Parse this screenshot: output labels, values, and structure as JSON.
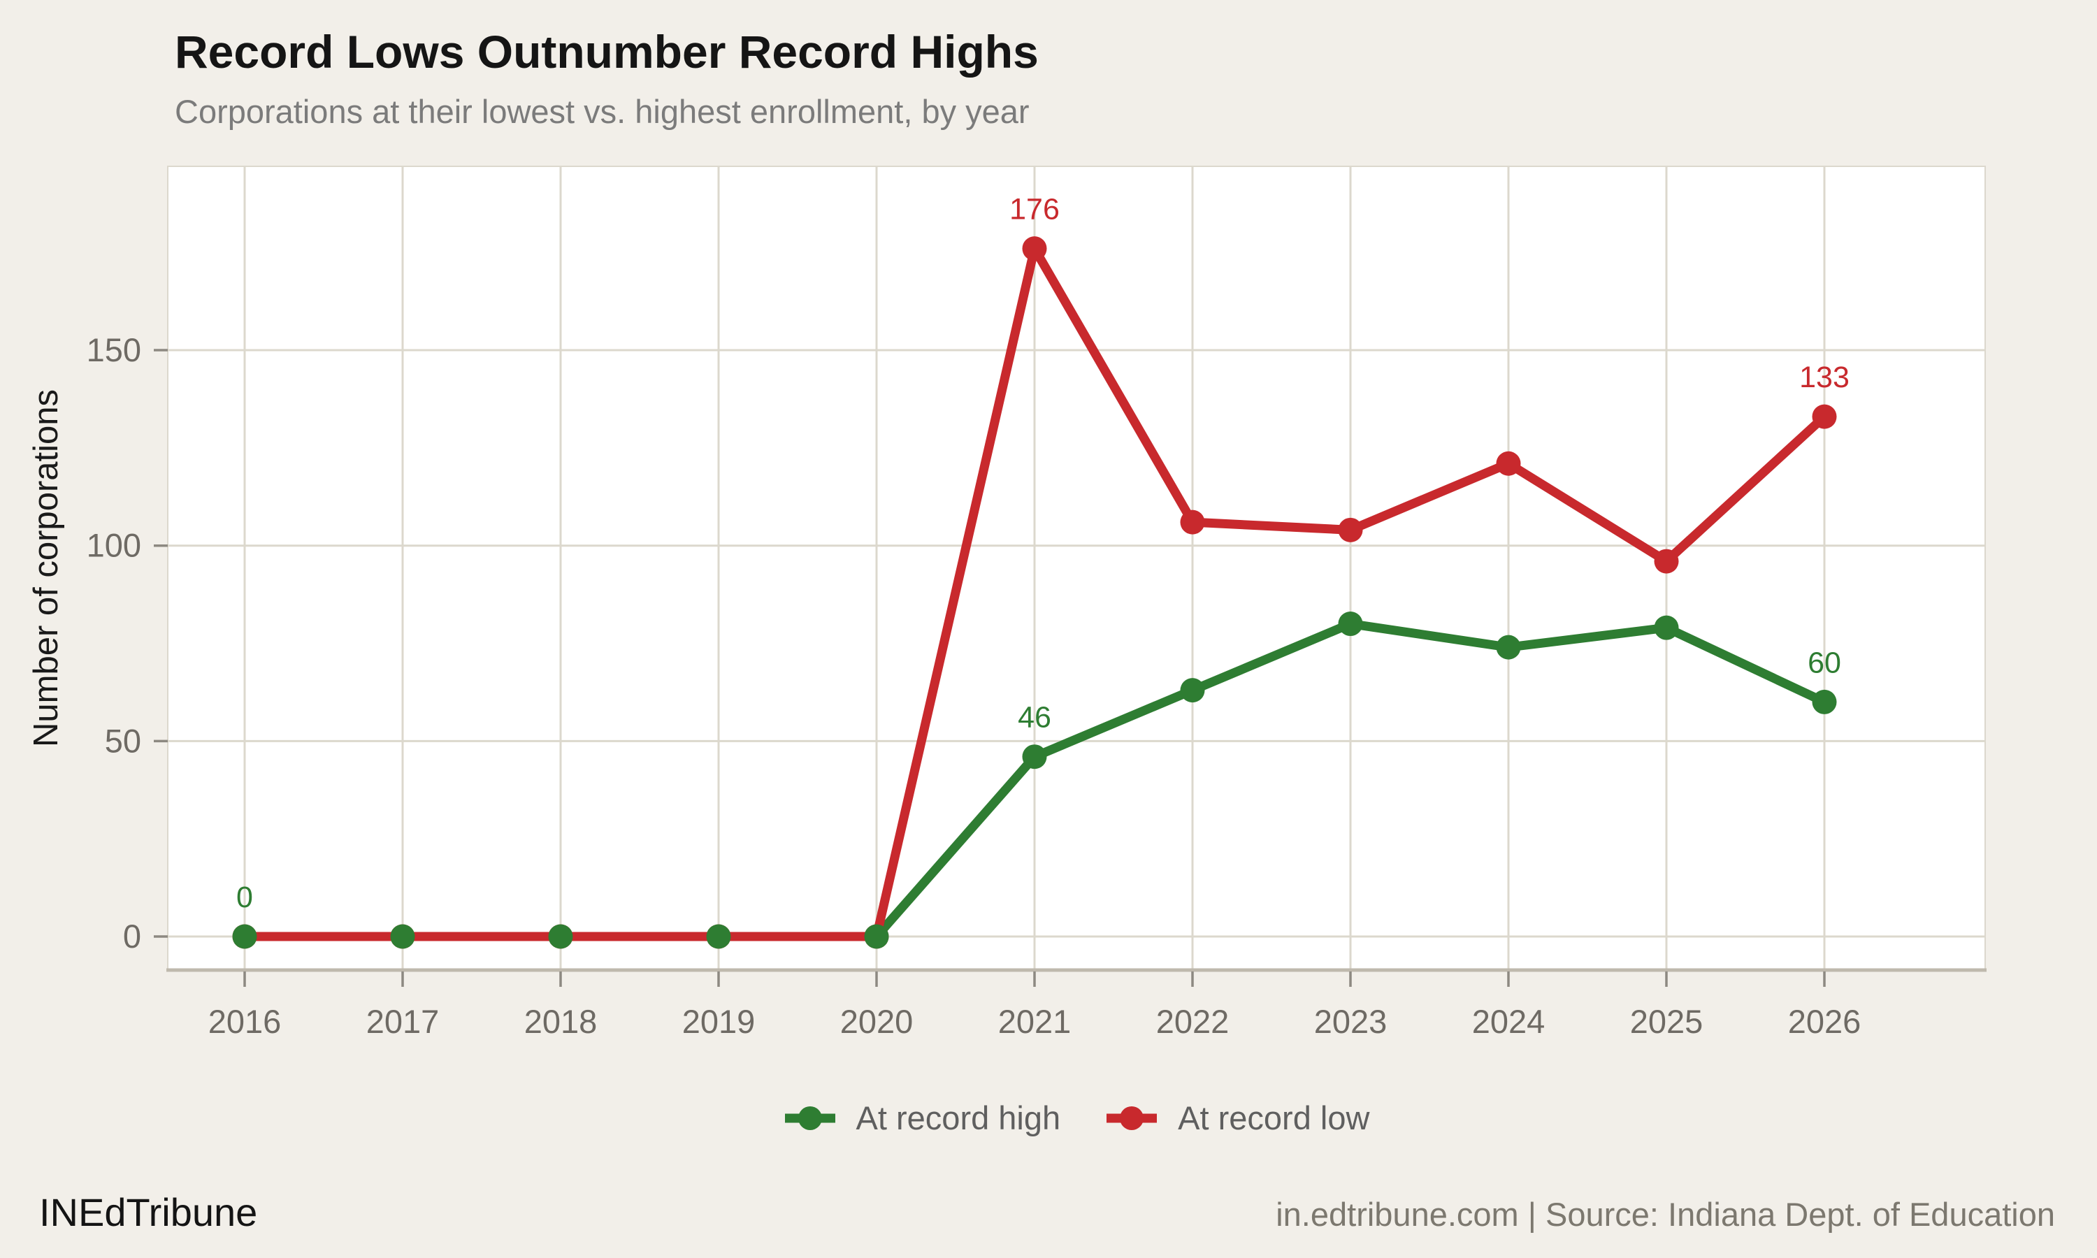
{
  "header": {
    "title": "Record Lows Outnumber Record Highs",
    "subtitle": "Corporations at their lowest vs. highest enrollment, by year"
  },
  "footer": {
    "brand": "INEdTribune",
    "source": "in.edtribune.com | Source: Indiana Dept. of Education"
  },
  "colors": {
    "green": "#2e7d32",
    "red": "#c8292d",
    "page_background": "#f2efe9",
    "plot_background": "#ffffff",
    "gridline": "#dcd8cd",
    "axis_line": "#bfb9ad",
    "tick_mark": "#8d8981",
    "tick_label": "#6e6a64",
    "axis_title": "#1a1a1a"
  },
  "chart_data": {
    "type": "line",
    "title": "Record Lows Outnumber Record Highs",
    "subtitle": "Corporations at their lowest vs. highest enrollment, by year",
    "categories": [
      "2016",
      "2017",
      "2018",
      "2019",
      "2020",
      "2021",
      "2022",
      "2023",
      "2024",
      "2025",
      "2026"
    ],
    "series": [
      {
        "name": "At record high",
        "color_key": "green",
        "values": [
          0,
          0,
          0,
          0,
          0,
          46,
          63,
          80,
          74,
          79,
          60
        ]
      },
      {
        "name": "At record low",
        "color_key": "red",
        "values": [
          0,
          0,
          0,
          0,
          0,
          176,
          106,
          104,
          121,
          96,
          133
        ]
      }
    ],
    "point_labels": [
      {
        "series": "At record high",
        "category": "2016",
        "text": "0"
      },
      {
        "series": "At record high",
        "category": "2021",
        "text": "46"
      },
      {
        "series": "At record low",
        "category": "2021",
        "text": "176"
      },
      {
        "series": "At record high",
        "category": "2026",
        "text": "60"
      },
      {
        "series": "At record low",
        "category": "2026",
        "text": "133"
      }
    ],
    "xlabel": "",
    "ylabel": "Number of corporations",
    "yticks": [
      0,
      50,
      100,
      150
    ],
    "ylim": [
      0,
      197
    ],
    "grid": true,
    "legend_position": "bottom"
  }
}
